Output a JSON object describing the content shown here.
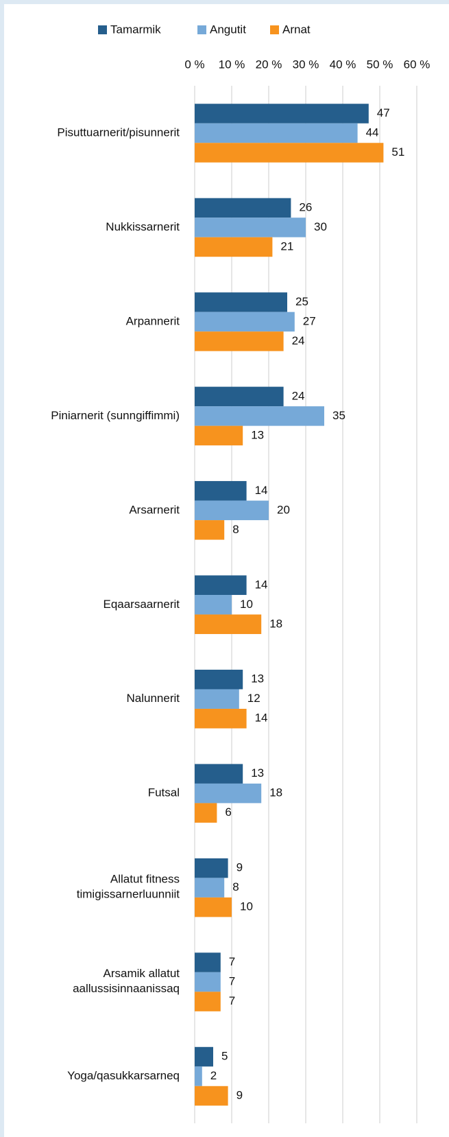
{
  "chart_data": {
    "type": "hbar",
    "categories": [
      "Pisuttuarnerit/pisunnerit",
      "Nukkissarnerit",
      "Arpannerit",
      "Piniarnerit (sunngiffimmi)",
      "Arsarnerit",
      "Eqaarsaarnerit",
      "Nalunnerit",
      "Futsal",
      "Allatut fitness\ntimigissarnerluunniit",
      "Arsamik allatut\naallussisinnaanissaq",
      "Yoga/qasukkarsarneq"
    ],
    "series": [
      {
        "name": "Tamarmik",
        "color": "#255e8c",
        "values": [
          47,
          26,
          25,
          24,
          14,
          14,
          13,
          13,
          9,
          7,
          5
        ]
      },
      {
        "name": "Angutit",
        "color": "#76a9d8",
        "values": [
          44,
          30,
          27,
          35,
          20,
          10,
          12,
          18,
          8,
          7,
          2
        ]
      },
      {
        "name": "Arnat",
        "color": "#f7931e",
        "values": [
          51,
          21,
          24,
          13,
          8,
          18,
          14,
          6,
          10,
          7,
          9
        ]
      }
    ],
    "xlim": [
      0,
      60
    ],
    "xticks": [
      {
        "value": 0,
        "label": "0 %"
      },
      {
        "value": 10,
        "label": "10 %"
      },
      {
        "value": 20,
        "label": "20 %"
      },
      {
        "value": 30,
        "label": "30 %"
      },
      {
        "value": 40,
        "label": "40 %"
      },
      {
        "value": 50,
        "label": "50 %"
      },
      {
        "value": 60,
        "label": "60 %"
      }
    ],
    "grid": true,
    "legend": "top"
  }
}
